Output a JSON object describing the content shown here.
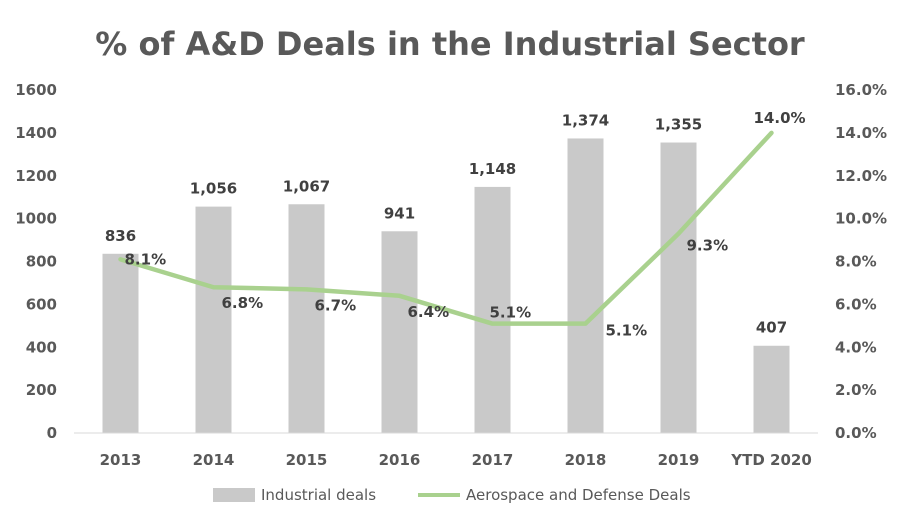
{
  "chart_data": {
    "type": "bar",
    "title": "% of A&D Deals in the Industrial Sector",
    "categories": [
      "2013",
      "2014",
      "2015",
      "2016",
      "2017",
      "2018",
      "2019",
      "YTD 2020"
    ],
    "series": [
      {
        "name": "Industrial deals",
        "type": "bar",
        "axis": "left",
        "color": "#c9c9c9",
        "values": [
          836,
          1056,
          1067,
          941,
          1148,
          1374,
          1355,
          407
        ],
        "labels": [
          "836",
          "1,056",
          "1,067",
          "941",
          "1,148",
          "1,374",
          "1,355",
          "407"
        ]
      },
      {
        "name": "Aerospace and Defense Deals",
        "type": "line",
        "axis": "right",
        "color": "#a9d18e",
        "values": [
          8.1,
          6.8,
          6.7,
          6.4,
          5.1,
          5.1,
          9.3,
          14.0
        ],
        "labels": [
          "8.1%",
          "6.8%",
          "6.7%",
          "6.4%",
          "5.1%",
          "5.1%",
          "9.3%",
          "14.0%"
        ]
      }
    ],
    "y_left": {
      "range": [
        0,
        1600
      ],
      "ticks": [
        "0",
        "200",
        "400",
        "600",
        "800",
        "1000",
        "1200",
        "1400",
        "1600"
      ]
    },
    "y_right": {
      "range": [
        0,
        16
      ],
      "ticks": [
        "0.0%",
        "2.0%",
        "4.0%",
        "6.0%",
        "8.0%",
        "10.0%",
        "12.0%",
        "14.0%",
        "16.0%"
      ]
    },
    "legend": {
      "position": "bottom"
    },
    "grid": false
  }
}
